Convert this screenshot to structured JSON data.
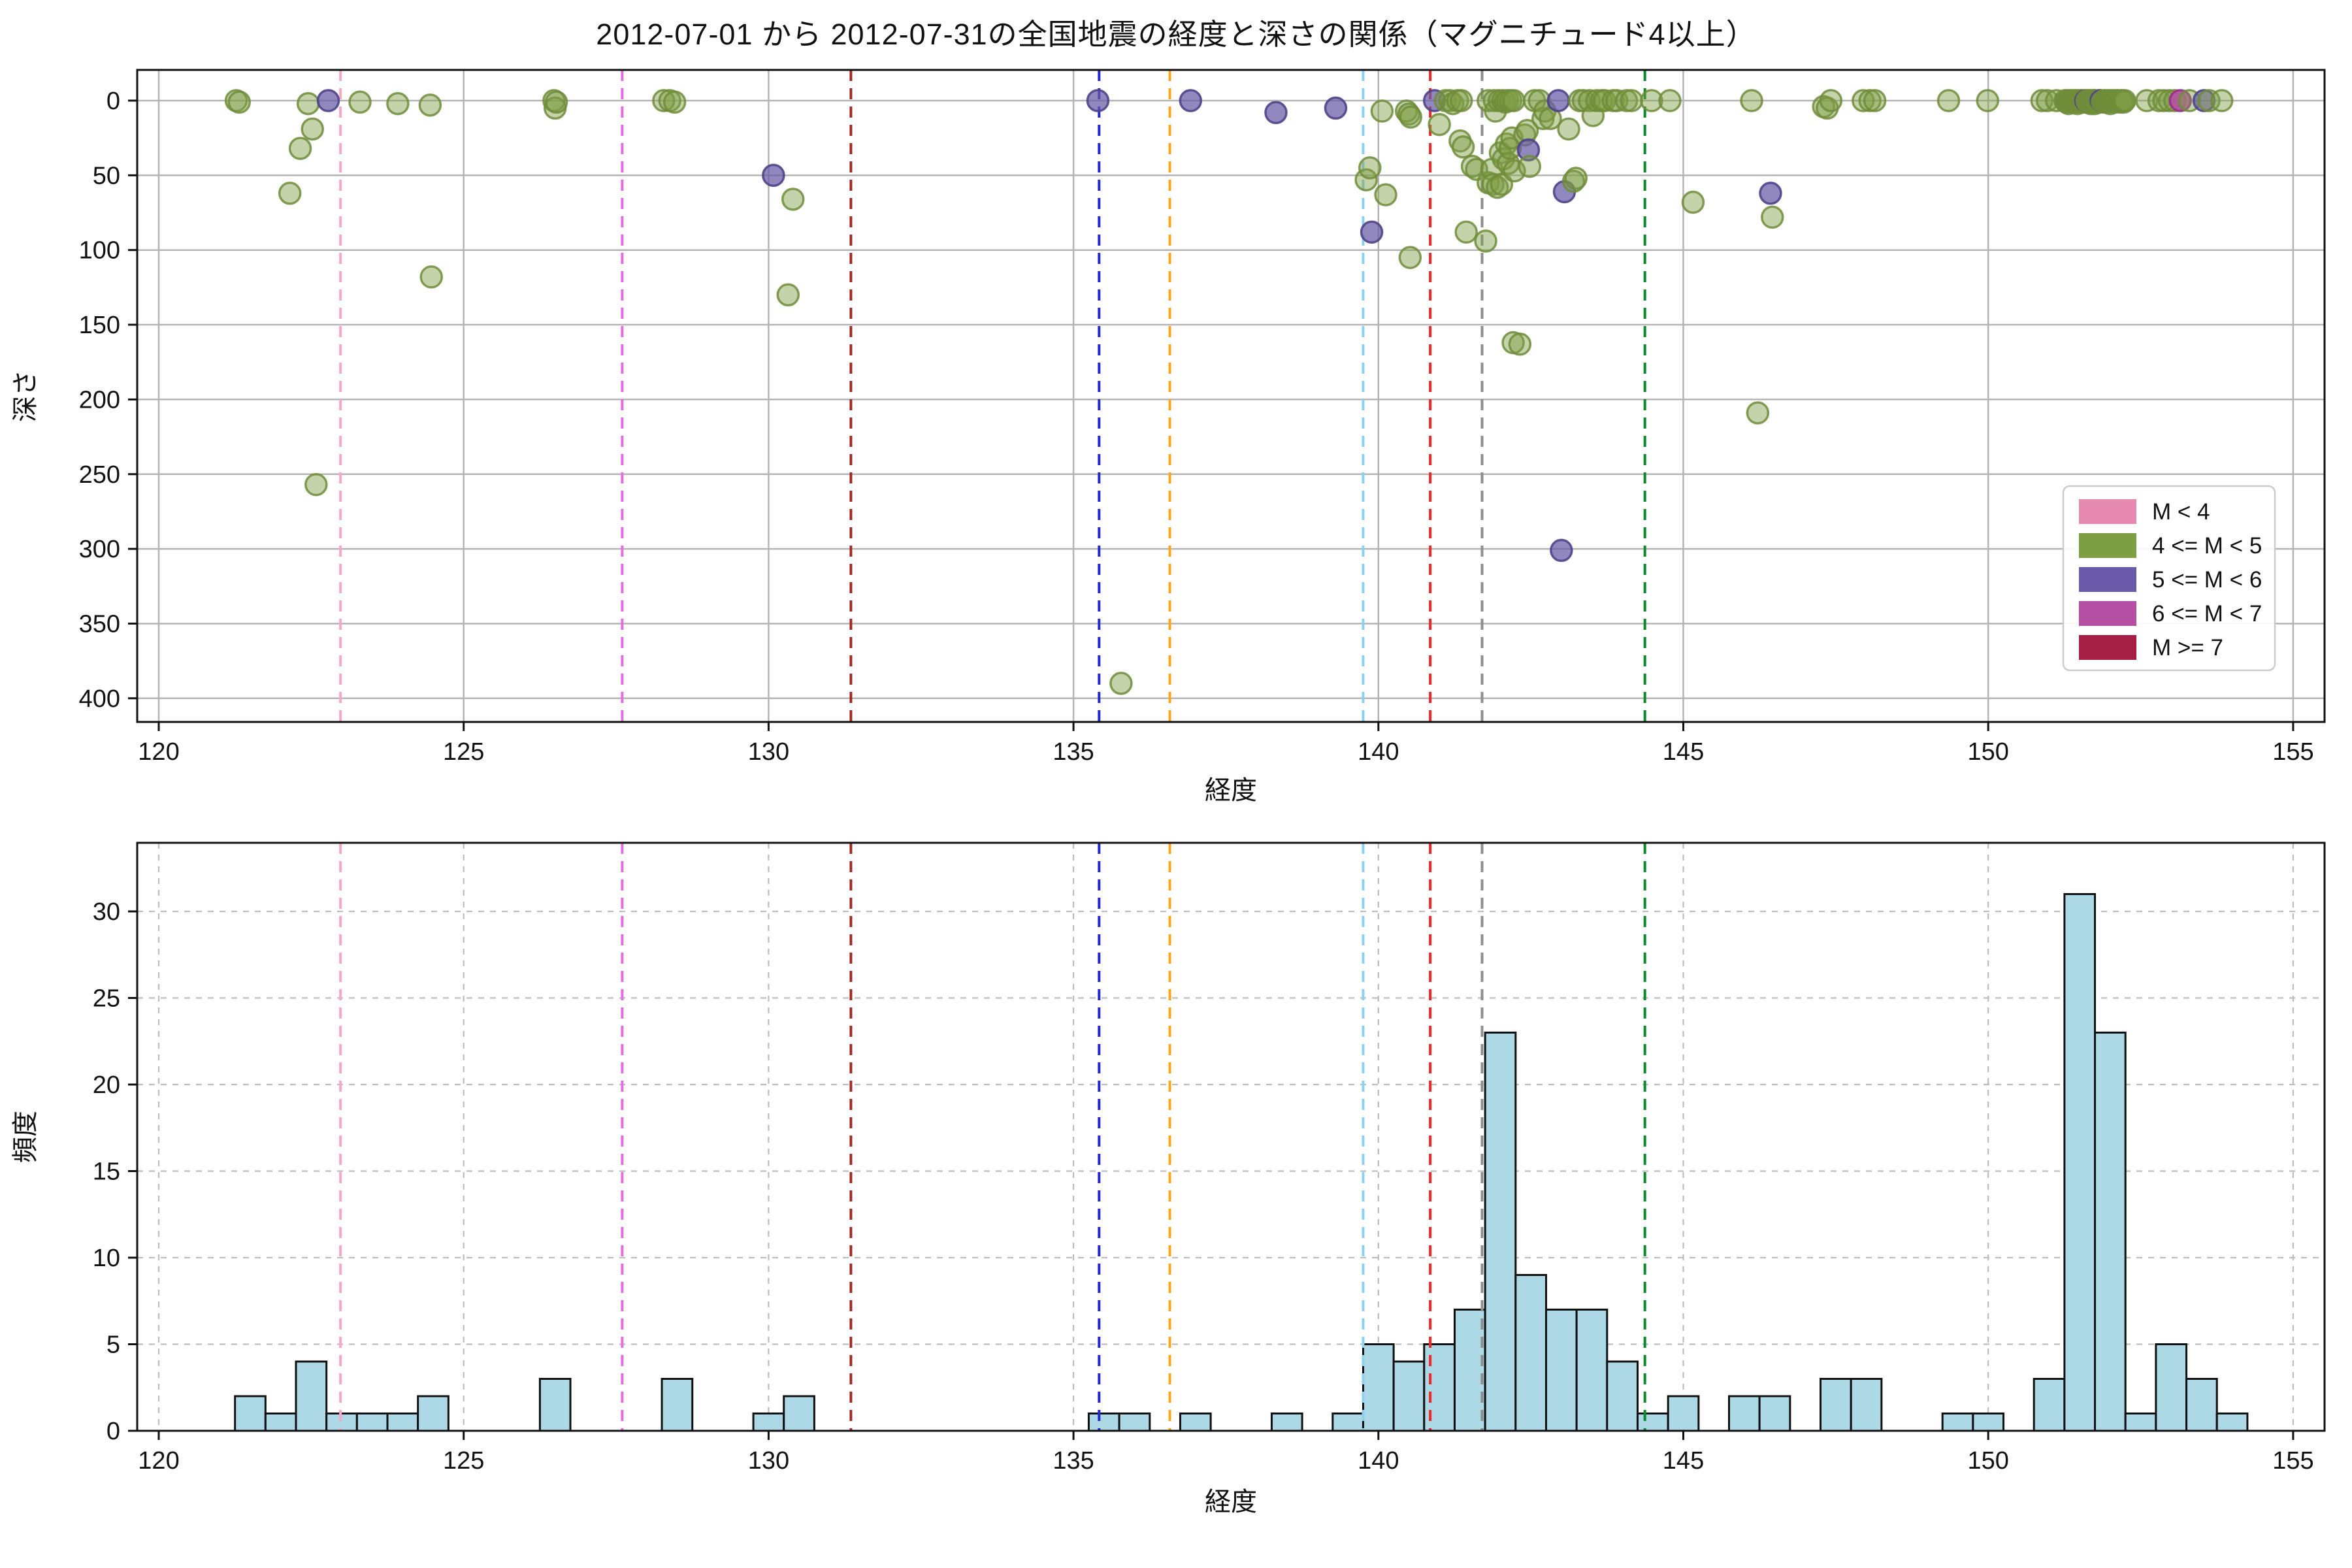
{
  "title": "2012-07-01 から 2012-07-31の全国地震の経度と深さの関係（マグニチュード4以上）",
  "legend": {
    "position": "lower right of scatter plot",
    "entries": [
      {
        "label": "M < 4",
        "color": "#e78ab0"
      },
      {
        "label": "4 <= M < 5",
        "color": "#7e9e44"
      },
      {
        "label": "5 <= M < 6",
        "color": "#685aa8"
      },
      {
        "label": "6 <= M < 7",
        "color": "#b44fa4"
      },
      {
        "label": "M >= 7",
        "color": "#a51e45"
      }
    ]
  },
  "marker_styles": {
    "4": {
      "fill": "#7e9e44",
      "fill_opacity": 0.45,
      "stroke": "#6e8c3a",
      "stroke_opacity": 0.85
    },
    "5": {
      "fill": "#685aa8",
      "fill_opacity": 0.72,
      "stroke": "#504288",
      "stroke_opacity": 0.9
    },
    "6": {
      "fill": "#b44fa4",
      "fill_opacity": 0.88,
      "stroke": "#963088",
      "stroke_opacity": 0.9
    }
  },
  "histogram_style": {
    "fill": "#add8e6",
    "edge": "#111111"
  },
  "grid_colors": {
    "scatter_grid": "#b4b4b4",
    "hist_grid": "#bdbdbd"
  },
  "vlines": [
    {
      "name": "pink",
      "x": 122.98,
      "color": "#f7a8c6"
    },
    {
      "name": "violet",
      "x": 127.6,
      "color": "#e26ee2"
    },
    {
      "name": "darkred",
      "x": 131.35,
      "color": "#9e2b25"
    },
    {
      "name": "blue",
      "x": 135.42,
      "color": "#2727cf"
    },
    {
      "name": "orange",
      "x": 136.58,
      "color": "#ffa51e"
    },
    {
      "name": "skyblue",
      "x": 139.75,
      "color": "#8ed0f0"
    },
    {
      "name": "red",
      "x": 140.85,
      "color": "#f42525"
    },
    {
      "name": "gray",
      "x": 141.7,
      "color": "#8e8e8e"
    },
    {
      "name": "green",
      "x": 144.37,
      "color": "#0e8a2e"
    }
  ],
  "chart_data": [
    {
      "type": "scatter",
      "title": "2012-07-01 から 2012-07-31の全国地震の経度と深さの関係（マグニチュード4以上）",
      "xlabel": "経度",
      "ylabel": "深さ",
      "xlim": [
        119.65,
        155.51
      ],
      "ylim": [
        -20,
        416
      ],
      "y_inverted": true,
      "xticks": [
        120,
        125,
        130,
        135,
        140,
        145,
        150,
        155
      ],
      "yticks": [
        0,
        50,
        100,
        150,
        200,
        250,
        300,
        350,
        400
      ],
      "grid": "solid",
      "points": [
        [
          121.27,
          0
        ],
        [
          121.32,
          1
        ],
        [
          122.15,
          62
        ],
        [
          122.32,
          32
        ],
        [
          122.45,
          2
        ],
        [
          122.52,
          19
        ],
        [
          122.58,
          257
        ],
        [
          122.78,
          0,
          "5"
        ],
        [
          123.3,
          1
        ],
        [
          123.92,
          2
        ],
        [
          124.45,
          3
        ],
        [
          124.47,
          118
        ],
        [
          126.48,
          0
        ],
        [
          126.5,
          5
        ],
        [
          126.52,
          1
        ],
        [
          128.28,
          0
        ],
        [
          128.38,
          0
        ],
        [
          128.46,
          1
        ],
        [
          130.08,
          50,
          "5"
        ],
        [
          130.32,
          130
        ],
        [
          130.4,
          66
        ],
        [
          135.4,
          0,
          "5"
        ],
        [
          135.78,
          390
        ],
        [
          136.92,
          0,
          "5"
        ],
        [
          138.32,
          8,
          "5"
        ],
        [
          139.3,
          5,
          "5"
        ],
        [
          139.8,
          53
        ],
        [
          139.86,
          45
        ],
        [
          139.89,
          88,
          "5"
        ],
        [
          140.06,
          7
        ],
        [
          140.12,
          63
        ],
        [
          140.46,
          7
        ],
        [
          140.5,
          9
        ],
        [
          140.52,
          105
        ],
        [
          140.53,
          11
        ],
        [
          140.92,
          0,
          "5"
        ],
        [
          141.0,
          16
        ],
        [
          141.1,
          0
        ],
        [
          141.17,
          0
        ],
        [
          141.22,
          2
        ],
        [
          141.3,
          0
        ],
        [
          141.34,
          27
        ],
        [
          141.36,
          0
        ],
        [
          141.39,
          31
        ],
        [
          141.44,
          88
        ],
        [
          141.54,
          44
        ],
        [
          141.61,
          46
        ],
        [
          141.76,
          94
        ],
        [
          141.8,
          0
        ],
        [
          141.8,
          55
        ],
        [
          141.86,
          46
        ],
        [
          141.88,
          56
        ],
        [
          141.9,
          0
        ],
        [
          141.92,
          7
        ],
        [
          141.95,
          58
        ],
        [
          141.98,
          0
        ],
        [
          142.0,
          35
        ],
        [
          142.02,
          56
        ],
        [
          142.04,
          0
        ],
        [
          142.05,
          39
        ],
        [
          142.08,
          1
        ],
        [
          142.1,
          29
        ],
        [
          142.12,
          0
        ],
        [
          142.13,
          42
        ],
        [
          142.16,
          32
        ],
        [
          142.17,
          0
        ],
        [
          142.19,
          25
        ],
        [
          142.21,
          162
        ],
        [
          142.22,
          0
        ],
        [
          142.23,
          47
        ],
        [
          142.32,
          163
        ],
        [
          142.4,
          23
        ],
        [
          142.44,
          20
        ],
        [
          142.46,
          33,
          "5"
        ],
        [
          142.48,
          44
        ],
        [
          142.56,
          0
        ],
        [
          142.64,
          0
        ],
        [
          142.7,
          12
        ],
        [
          142.73,
          7
        ],
        [
          142.82,
          12
        ],
        [
          142.95,
          0,
          "5"
        ],
        [
          143.0,
          301,
          "5"
        ],
        [
          143.05,
          61,
          "5"
        ],
        [
          143.12,
          19
        ],
        [
          143.2,
          54
        ],
        [
          143.24,
          52
        ],
        [
          143.3,
          0
        ],
        [
          143.36,
          0
        ],
        [
          143.46,
          0
        ],
        [
          143.52,
          10
        ],
        [
          143.58,
          0
        ],
        [
          143.66,
          0
        ],
        [
          143.71,
          0
        ],
        [
          143.85,
          0
        ],
        [
          143.91,
          0
        ],
        [
          144.07,
          0
        ],
        [
          144.15,
          0
        ],
        [
          144.48,
          0
        ],
        [
          144.78,
          0
        ],
        [
          145.16,
          68
        ],
        [
          146.12,
          0
        ],
        [
          146.22,
          209
        ],
        [
          146.43,
          62,
          "5"
        ],
        [
          146.46,
          78
        ],
        [
          147.3,
          4
        ],
        [
          147.36,
          5
        ],
        [
          147.42,
          0
        ],
        [
          147.95,
          0
        ],
        [
          148.06,
          0
        ],
        [
          148.14,
          0
        ],
        [
          149.35,
          0
        ],
        [
          149.99,
          0
        ],
        [
          150.88,
          0
        ],
        [
          150.97,
          0
        ],
        [
          151.12,
          0
        ],
        [
          151.26,
          0
        ],
        [
          151.28,
          1
        ],
        [
          151.3,
          0
        ],
        [
          151.32,
          2
        ],
        [
          151.34,
          0
        ],
        [
          151.36,
          1
        ],
        [
          151.38,
          0
        ],
        [
          151.4,
          0
        ],
        [
          151.42,
          1
        ],
        [
          151.44,
          0
        ],
        [
          151.46,
          2
        ],
        [
          151.48,
          0
        ],
        [
          151.5,
          1
        ],
        [
          151.52,
          0
        ],
        [
          151.54,
          0
        ],
        [
          151.56,
          1
        ],
        [
          151.58,
          0
        ],
        [
          151.6,
          0,
          "5"
        ],
        [
          151.62,
          0
        ],
        [
          151.63,
          1
        ],
        [
          151.65,
          0
        ],
        [
          151.66,
          0
        ],
        [
          151.68,
          2
        ],
        [
          151.69,
          0
        ],
        [
          151.7,
          1
        ],
        [
          151.71,
          0
        ],
        [
          151.72,
          0
        ],
        [
          151.73,
          1
        ],
        [
          151.74,
          0
        ],
        [
          151.745,
          2
        ],
        [
          151.748,
          0
        ],
        [
          151.76,
          0
        ],
        [
          151.78,
          1
        ],
        [
          151.81,
          0
        ],
        [
          151.83,
          0
        ],
        [
          151.85,
          0,
          "5"
        ],
        [
          151.87,
          1
        ],
        [
          151.9,
          0
        ],
        [
          151.92,
          0
        ],
        [
          151.94,
          1
        ],
        [
          151.96,
          0
        ],
        [
          151.98,
          0
        ],
        [
          152.0,
          2
        ],
        [
          152.02,
          0
        ],
        [
          152.05,
          0
        ],
        [
          152.07,
          1
        ],
        [
          152.09,
          0
        ],
        [
          152.11,
          0
        ],
        [
          152.13,
          0
        ],
        [
          152.16,
          1
        ],
        [
          152.18,
          0
        ],
        [
          152.2,
          0
        ],
        [
          152.22,
          1
        ],
        [
          152.24,
          0
        ],
        [
          152.6,
          0
        ],
        [
          152.8,
          0
        ],
        [
          152.88,
          0
        ],
        [
          152.97,
          0
        ],
        [
          153.06,
          0
        ],
        [
          153.15,
          0,
          "6"
        ],
        [
          153.3,
          0
        ],
        [
          153.54,
          0,
          "5"
        ],
        [
          153.62,
          0
        ],
        [
          153.83,
          0
        ]
      ]
    },
    {
      "type": "bar",
      "subtype": "histogram",
      "xlabel": "経度",
      "ylabel": "頻度",
      "xlim": [
        119.65,
        155.51
      ],
      "ylim": [
        0,
        34
      ],
      "xticks": [
        120,
        125,
        130,
        135,
        140,
        145,
        150,
        155
      ],
      "yticks": [
        0,
        5,
        10,
        15,
        20,
        25,
        30
      ],
      "grid": "dashed",
      "bin_width": 0.5,
      "bars": [
        [
          121.25,
          2
        ],
        [
          121.75,
          1
        ],
        [
          122.25,
          4
        ],
        [
          122.75,
          1
        ],
        [
          123.25,
          1
        ],
        [
          123.75,
          1
        ],
        [
          124.25,
          2
        ],
        [
          126.25,
          3
        ],
        [
          128.25,
          3
        ],
        [
          129.75,
          1
        ],
        [
          130.25,
          2
        ],
        [
          135.25,
          1
        ],
        [
          135.75,
          1
        ],
        [
          136.75,
          1
        ],
        [
          138.25,
          1
        ],
        [
          139.25,
          1
        ],
        [
          139.75,
          5
        ],
        [
          140.25,
          4
        ],
        [
          140.75,
          5
        ],
        [
          141.25,
          7
        ],
        [
          141.75,
          23
        ],
        [
          142.25,
          9
        ],
        [
          142.75,
          7
        ],
        [
          143.25,
          7
        ],
        [
          143.75,
          4
        ],
        [
          144.25,
          1
        ],
        [
          144.75,
          2
        ],
        [
          145.75,
          2
        ],
        [
          146.25,
          2
        ],
        [
          147.25,
          3
        ],
        [
          147.75,
          3
        ],
        [
          149.25,
          1
        ],
        [
          149.75,
          1
        ],
        [
          150.75,
          3
        ],
        [
          151.25,
          31
        ],
        [
          151.75,
          23
        ],
        [
          152.25,
          1
        ],
        [
          152.75,
          5
        ],
        [
          153.25,
          3
        ],
        [
          153.75,
          1
        ]
      ]
    }
  ]
}
